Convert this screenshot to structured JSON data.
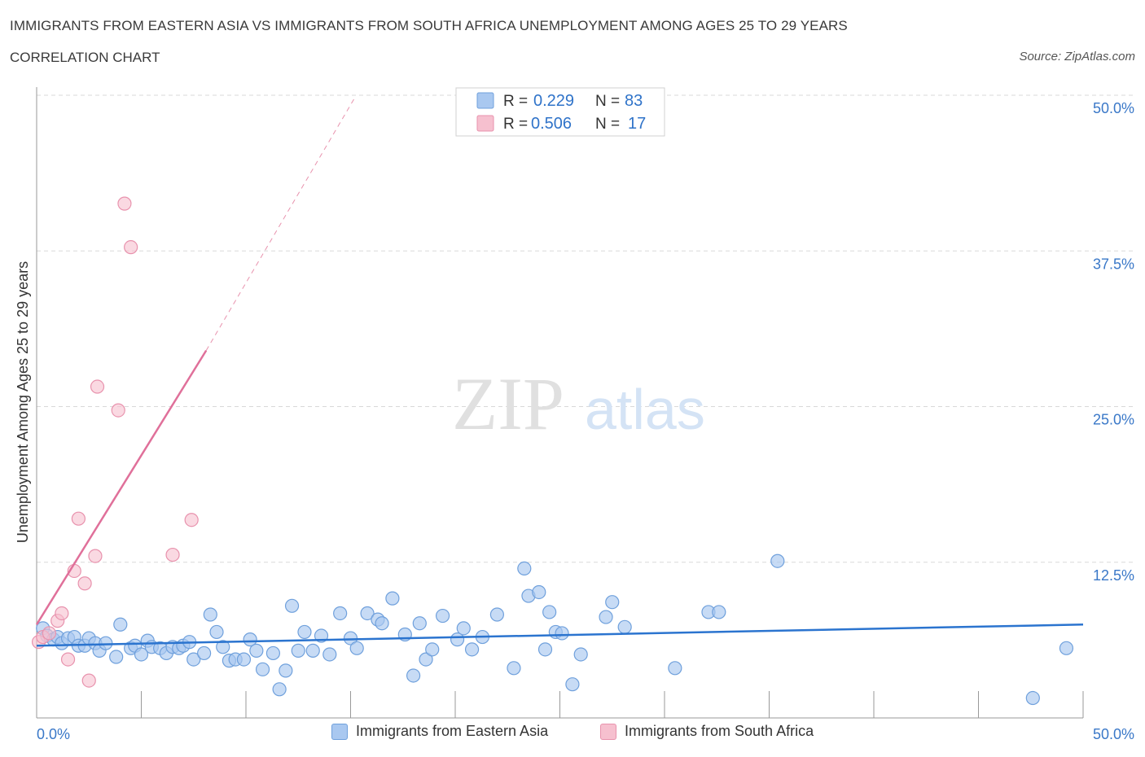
{
  "header": {
    "title": "IMMIGRANTS FROM EASTERN ASIA VS IMMIGRANTS FROM SOUTH AFRICA UNEMPLOYMENT AMONG AGES 25 TO 29 YEARS",
    "subtitle": "CORRELATION CHART",
    "source": "Source: ZipAtlas.com"
  },
  "colors": {
    "blue_fill": "#a9c8f0",
    "blue_stroke": "#6fa0dc",
    "blue_line": "#2b74cf",
    "pink_fill": "#f6c0cf",
    "pink_stroke": "#e892ad",
    "pink_line": "#e0709a",
    "axis_text": "#3a78c8",
    "grid": "#d9d9d9"
  },
  "legend_top": {
    "rows": [
      {
        "r_label": "R =",
        "r_value": "0.229",
        "n_label": "N =",
        "n_value": "83",
        "series": "eastern_asia"
      },
      {
        "r_label": "R =",
        "r_value": "0.506",
        "n_label": "N =",
        "n_value": "17",
        "series": "south_africa"
      }
    ]
  },
  "watermark": {
    "zip": "ZIP",
    "atlas": "atlas"
  },
  "chart_data": {
    "type": "scatter",
    "title": "IMMIGRANTS FROM EASTERN ASIA VS IMMIGRANTS FROM SOUTH AFRICA UNEMPLOYMENT AMONG AGES 25 TO 29 YEARS",
    "subtitle": "CORRELATION CHART",
    "xlabel": "",
    "ylabel": "Unemployment Among Ages 25 to 29 years",
    "xlim": [
      0,
      50
    ],
    "ylim": [
      0,
      50
    ],
    "x_tick_labels": [
      {
        "value": 0,
        "label": "0.0%"
      },
      {
        "value": 50,
        "label": "50.0%"
      }
    ],
    "y_tick_labels": [
      {
        "value": 12.5,
        "label": "12.5%"
      },
      {
        "value": 25,
        "label": "25.0%"
      },
      {
        "value": 37.5,
        "label": "37.5%"
      },
      {
        "value": 50,
        "label": "50.0%"
      }
    ],
    "grid": "horizontal dashed",
    "legend_position": "top-center",
    "series": [
      {
        "name": "Immigrants from Eastern Asia",
        "color": "#a9c8f0",
        "r": 0.229,
        "n": 83,
        "trend": {
          "x": [
            0,
            50
          ],
          "y": [
            5.8,
            7.5
          ]
        },
        "points": [
          [
            0.3,
            7.2
          ],
          [
            0.5,
            6.6
          ],
          [
            0.8,
            6.3
          ],
          [
            1.0,
            6.5
          ],
          [
            1.2,
            6.0
          ],
          [
            1.5,
            6.4
          ],
          [
            1.8,
            6.5
          ],
          [
            2.0,
            5.8
          ],
          [
            2.3,
            5.8
          ],
          [
            2.5,
            6.4
          ],
          [
            2.8,
            6.0
          ],
          [
            3.0,
            5.4
          ],
          [
            3.3,
            6.0
          ],
          [
            3.8,
            4.9
          ],
          [
            4.0,
            7.5
          ],
          [
            4.5,
            5.6
          ],
          [
            4.7,
            5.8
          ],
          [
            5.0,
            5.1
          ],
          [
            5.3,
            6.2
          ],
          [
            5.5,
            5.7
          ],
          [
            5.9,
            5.6
          ],
          [
            6.2,
            5.2
          ],
          [
            6.5,
            5.7
          ],
          [
            6.8,
            5.6
          ],
          [
            7.0,
            5.8
          ],
          [
            7.3,
            6.1
          ],
          [
            7.5,
            4.7
          ],
          [
            8.0,
            5.2
          ],
          [
            8.3,
            8.3
          ],
          [
            8.6,
            6.9
          ],
          [
            8.9,
            5.7
          ],
          [
            9.2,
            4.6
          ],
          [
            9.5,
            4.7
          ],
          [
            9.9,
            4.7
          ],
          [
            10.2,
            6.3
          ],
          [
            10.5,
            5.4
          ],
          [
            10.8,
            3.9
          ],
          [
            11.3,
            5.2
          ],
          [
            11.6,
            2.3
          ],
          [
            11.9,
            3.8
          ],
          [
            12.2,
            9.0
          ],
          [
            12.5,
            5.4
          ],
          [
            12.8,
            6.9
          ],
          [
            13.2,
            5.4
          ],
          [
            13.6,
            6.6
          ],
          [
            14.0,
            5.1
          ],
          [
            14.5,
            8.4
          ],
          [
            15.0,
            6.4
          ],
          [
            15.3,
            5.6
          ],
          [
            15.8,
            8.4
          ],
          [
            16.3,
            7.9
          ],
          [
            16.5,
            7.6
          ],
          [
            17.0,
            9.6
          ],
          [
            17.6,
            6.7
          ],
          [
            18.0,
            3.4
          ],
          [
            18.3,
            7.6
          ],
          [
            18.6,
            4.7
          ],
          [
            18.9,
            5.5
          ],
          [
            19.4,
            8.2
          ],
          [
            20.1,
            6.3
          ],
          [
            20.4,
            7.2
          ],
          [
            20.8,
            5.5
          ],
          [
            21.3,
            6.5
          ],
          [
            22.0,
            8.3
          ],
          [
            22.8,
            4.0
          ],
          [
            23.3,
            12.0
          ],
          [
            23.5,
            9.8
          ],
          [
            24.0,
            10.1
          ],
          [
            24.3,
            5.5
          ],
          [
            24.5,
            8.5
          ],
          [
            24.8,
            6.9
          ],
          [
            25.1,
            6.8
          ],
          [
            25.6,
            2.7
          ],
          [
            26.0,
            5.1
          ],
          [
            27.2,
            8.1
          ],
          [
            27.5,
            9.3
          ],
          [
            28.1,
            7.3
          ],
          [
            30.5,
            4.0
          ],
          [
            32.1,
            8.5
          ],
          [
            32.6,
            8.5
          ],
          [
            35.4,
            12.6
          ],
          [
            47.6,
            1.6
          ],
          [
            49.2,
            5.6
          ]
        ]
      },
      {
        "name": "Immigrants from South Africa",
        "color": "#f6c0cf",
        "r": 0.506,
        "n": 17,
        "trend": {
          "x": [
            0,
            8.1
          ],
          "y": [
            7.5,
            29.5
          ]
        },
        "trend_extended": {
          "x": [
            8.1,
            15.2
          ],
          "y": [
            29.5,
            49.8
          ]
        },
        "points": [
          [
            0.1,
            6.1
          ],
          [
            0.3,
            6.5
          ],
          [
            0.6,
            6.8
          ],
          [
            1.0,
            7.8
          ],
          [
            1.2,
            8.4
          ],
          [
            1.5,
            4.7
          ],
          [
            1.8,
            11.8
          ],
          [
            2.0,
            16.0
          ],
          [
            2.3,
            10.8
          ],
          [
            2.5,
            3.0
          ],
          [
            2.8,
            13.0
          ],
          [
            2.9,
            26.6
          ],
          [
            3.9,
            24.7
          ],
          [
            4.2,
            41.3
          ],
          [
            4.5,
            37.8
          ],
          [
            6.5,
            13.1
          ],
          [
            7.4,
            15.9
          ]
        ]
      }
    ]
  }
}
